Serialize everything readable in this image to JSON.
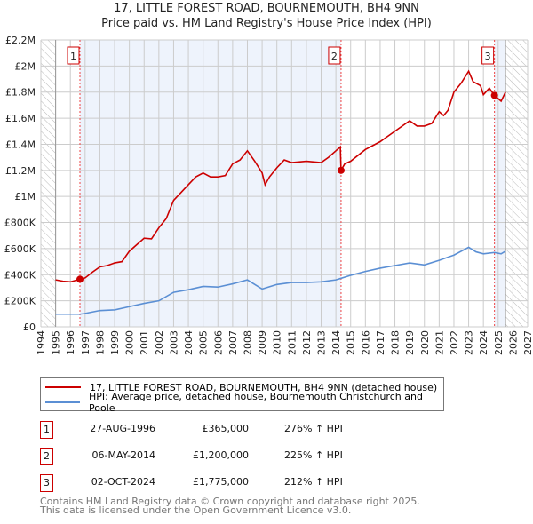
{
  "chart_data": {
    "type": "line",
    "title": "17, LITTLE FOREST ROAD, BOURNEMOUTH, BH4 9NN",
    "subtitle": "Price paid vs. HM Land Registry's House Price Index (HPI)",
    "xlim": [
      1994,
      2027
    ],
    "ylim": [
      0,
      2200000
    ],
    "y_ticks": [
      {
        "v": 0,
        "label": "£0"
      },
      {
        "v": 200000,
        "label": "£200K"
      },
      {
        "v": 400000,
        "label": "£400K"
      },
      {
        "v": 600000,
        "label": "£600K"
      },
      {
        "v": 800000,
        "label": "£800K"
      },
      {
        "v": 1000000,
        "label": "£1M"
      },
      {
        "v": 1200000,
        "label": "£1.2M"
      },
      {
        "v": 1400000,
        "label": "£1.4M"
      },
      {
        "v": 1600000,
        "label": "£1.6M"
      },
      {
        "v": 1800000,
        "label": "£1.8M"
      },
      {
        "v": 2000000,
        "label": "£2M"
      },
      {
        "v": 2200000,
        "label": "£2.2M"
      }
    ],
    "x_ticks": [
      "1994",
      "1995",
      "1996",
      "1997",
      "1998",
      "1999",
      "2000",
      "2001",
      "2002",
      "2003",
      "2004",
      "2005",
      "2006",
      "2007",
      "2008",
      "2009",
      "2010",
      "2011",
      "2012",
      "2013",
      "2014",
      "2015",
      "2016",
      "2017",
      "2018",
      "2019",
      "2020",
      "2021",
      "2022",
      "2023",
      "2024",
      "2025",
      "2026",
      "2027"
    ],
    "grid": true,
    "series": [
      {
        "name": "17, LITTLE FOREST ROAD, BOURNEMOUTH, BH4 9NN (detached house)",
        "color": "#cc0000",
        "points": [
          [
            1995,
            360000
          ],
          [
            1995.5,
            350000
          ],
          [
            1996,
            345000
          ],
          [
            1996.65,
            365000
          ],
          [
            1997,
            375000
          ],
          [
            1997.5,
            420000
          ],
          [
            1998,
            460000
          ],
          [
            1998.5,
            470000
          ],
          [
            1999,
            490000
          ],
          [
            1999.5,
            500000
          ],
          [
            2000,
            580000
          ],
          [
            2000.5,
            630000
          ],
          [
            2001,
            680000
          ],
          [
            2001.5,
            675000
          ],
          [
            2002,
            760000
          ],
          [
            2002.5,
            830000
          ],
          [
            2003,
            970000
          ],
          [
            2003.5,
            1030000
          ],
          [
            2004,
            1090000
          ],
          [
            2004.5,
            1150000
          ],
          [
            2005,
            1180000
          ],
          [
            2005.5,
            1150000
          ],
          [
            2006,
            1150000
          ],
          [
            2006.5,
            1160000
          ],
          [
            2007,
            1250000
          ],
          [
            2007.5,
            1280000
          ],
          [
            2008,
            1350000
          ],
          [
            2008.5,
            1270000
          ],
          [
            2009,
            1180000
          ],
          [
            2009.2,
            1090000
          ],
          [
            2009.5,
            1150000
          ],
          [
            2010,
            1220000
          ],
          [
            2010.5,
            1280000
          ],
          [
            2011,
            1260000
          ],
          [
            2012,
            1270000
          ],
          [
            2013,
            1260000
          ],
          [
            2013.5,
            1300000
          ],
          [
            2014,
            1350000
          ],
          [
            2014.3,
            1380000
          ],
          [
            2014.35,
            1200000
          ],
          [
            2014.6,
            1250000
          ],
          [
            2015,
            1270000
          ],
          [
            2016,
            1360000
          ],
          [
            2017,
            1420000
          ],
          [
            2017.5,
            1460000
          ],
          [
            2018,
            1500000
          ],
          [
            2018.5,
            1540000
          ],
          [
            2019,
            1580000
          ],
          [
            2019.5,
            1540000
          ],
          [
            2020,
            1540000
          ],
          [
            2020.5,
            1560000
          ],
          [
            2021,
            1650000
          ],
          [
            2021.3,
            1620000
          ],
          [
            2021.6,
            1660000
          ],
          [
            2022,
            1800000
          ],
          [
            2022.5,
            1870000
          ],
          [
            2023,
            1960000
          ],
          [
            2023.3,
            1880000
          ],
          [
            2023.8,
            1850000
          ],
          [
            2024,
            1780000
          ],
          [
            2024.4,
            1830000
          ],
          [
            2024.75,
            1775000
          ],
          [
            2025.2,
            1730000
          ],
          [
            2025.5,
            1800000
          ]
        ]
      },
      {
        "name": "HPI: Average price, detached house, Bournemouth Christchurch and Poole",
        "color": "#5b8fd4",
        "points": [
          [
            1995,
            97000
          ],
          [
            1996.65,
            97000
          ],
          [
            1997,
            103000
          ],
          [
            1998,
            125000
          ],
          [
            1999,
            130000
          ],
          [
            2000,
            155000
          ],
          [
            2001,
            180000
          ],
          [
            2002,
            200000
          ],
          [
            2003,
            265000
          ],
          [
            2004,
            285000
          ],
          [
            2005,
            310000
          ],
          [
            2006,
            305000
          ],
          [
            2007,
            330000
          ],
          [
            2008,
            360000
          ],
          [
            2009,
            290000
          ],
          [
            2010,
            325000
          ],
          [
            2011,
            340000
          ],
          [
            2012,
            340000
          ],
          [
            2013,
            345000
          ],
          [
            2014,
            360000
          ],
          [
            2015,
            395000
          ],
          [
            2016,
            425000
          ],
          [
            2017,
            450000
          ],
          [
            2018,
            470000
          ],
          [
            2019,
            490000
          ],
          [
            2020,
            475000
          ],
          [
            2021,
            510000
          ],
          [
            2022,
            550000
          ],
          [
            2023,
            610000
          ],
          [
            2023.5,
            575000
          ],
          [
            2024,
            560000
          ],
          [
            2024.75,
            570000
          ],
          [
            2025.2,
            560000
          ],
          [
            2025.5,
            580000
          ]
        ]
      }
    ],
    "data_end": 2025.5,
    "legend_position": "bottom",
    "sales": [
      {
        "id": "1",
        "x": 1996.65,
        "date": "27-AUG-1996",
        "price": 365000,
        "price_label": "£365,000",
        "hpi": "276% ↑ HPI"
      },
      {
        "id": "2",
        "x": 2014.35,
        "date": "06-MAY-2014",
        "price": 1200000,
        "price_label": "£1,200,000",
        "hpi": "225% ↑ HPI"
      },
      {
        "id": "3",
        "x": 2024.75,
        "date": "02-OCT-2024",
        "price": 1775000,
        "price_label": "£1,775,000",
        "hpi": "212% ↑ HPI"
      }
    ]
  },
  "footer": [
    "Contains HM Land Registry data © Crown copyright and database right 2025.",
    "This data is licensed under the Open Government Licence v3.0."
  ]
}
